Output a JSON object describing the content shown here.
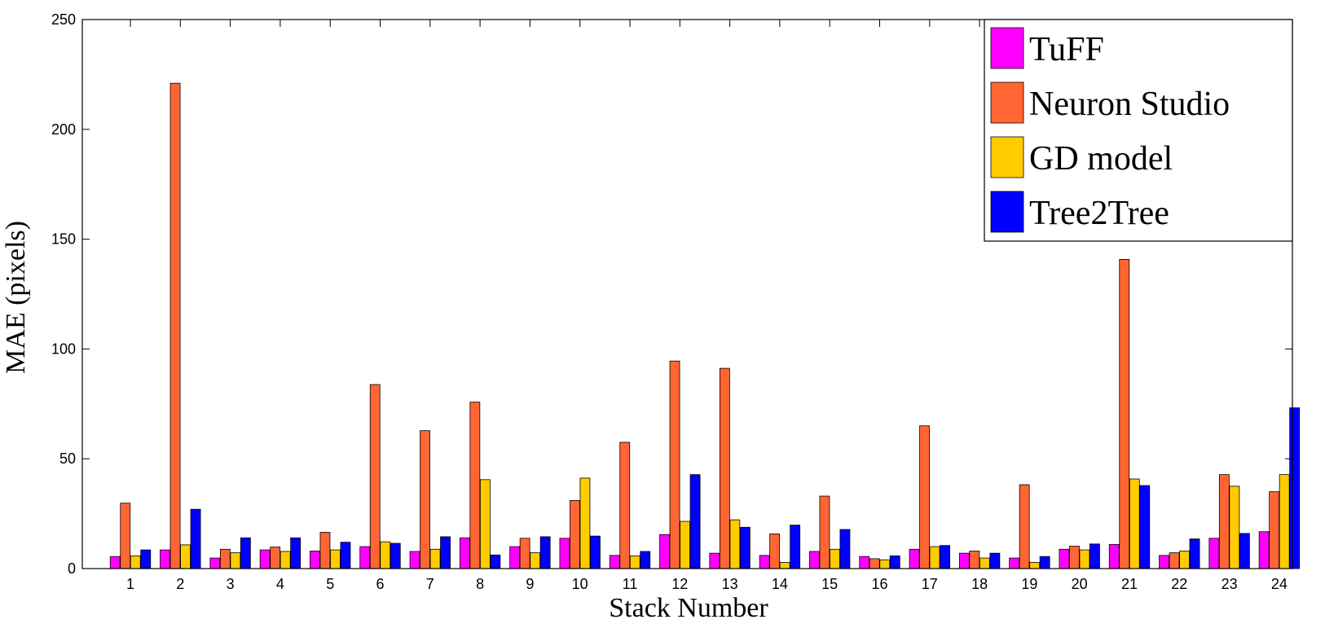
{
  "chart_data": {
    "type": "bar",
    "title": "",
    "xlabel": "Stack Number",
    "ylabel": "MAE (pixels)",
    "ylim": [
      0,
      250
    ],
    "yticks": [
      0,
      50,
      100,
      150,
      200,
      250
    ],
    "categories": [
      "1",
      "2",
      "3",
      "4",
      "5",
      "6",
      "7",
      "8",
      "9",
      "10",
      "11",
      "12",
      "13",
      "14",
      "15",
      "16",
      "17",
      "18",
      "19",
      "20",
      "21",
      "22",
      "23",
      "24"
    ],
    "legend_position": "top-right",
    "grid": false,
    "series": [
      {
        "name": "TuFF",
        "color": "#ff00ff",
        "values": [
          5.5,
          8.5,
          4.8,
          8.5,
          8.0,
          10.0,
          7.8,
          14.0,
          10.0,
          13.8,
          6.0,
          15.5,
          7.0,
          6.0,
          7.8,
          5.5,
          8.8,
          7.0,
          4.8,
          8.8,
          11.0,
          6.0,
          13.8,
          16.8
        ]
      },
      {
        "name": "Neuron Studio",
        "color": "#ff6633",
        "values": [
          29.8,
          221.0,
          8.8,
          9.8,
          16.5,
          83.8,
          62.8,
          75.8,
          13.8,
          31.0,
          57.5,
          94.5,
          91.2,
          15.8,
          33.0,
          4.5,
          65.0,
          8.0,
          38.2,
          10.2,
          140.8,
          7.2,
          42.8,
          35.0
        ]
      },
      {
        "name": "GD model",
        "color": "#ffcc00",
        "values": [
          5.8,
          10.8,
          7.2,
          7.8,
          8.5,
          12.2,
          8.8,
          40.5,
          7.2,
          41.2,
          5.8,
          21.5,
          22.2,
          2.8,
          8.8,
          4.0,
          10.0,
          4.8,
          2.8,
          8.5,
          40.8,
          8.0,
          37.5,
          42.8
        ]
      },
      {
        "name": "Tree2Tree",
        "color": "#0000ff",
        "values": [
          8.5,
          27.0,
          14.0,
          14.0,
          12.0,
          11.5,
          14.5,
          6.2,
          14.5,
          14.8,
          7.8,
          42.8,
          18.8,
          19.8,
          17.8,
          5.8,
          10.5,
          7.0,
          5.5,
          11.2,
          37.8,
          13.5,
          16.0,
          73.2
        ]
      }
    ]
  }
}
